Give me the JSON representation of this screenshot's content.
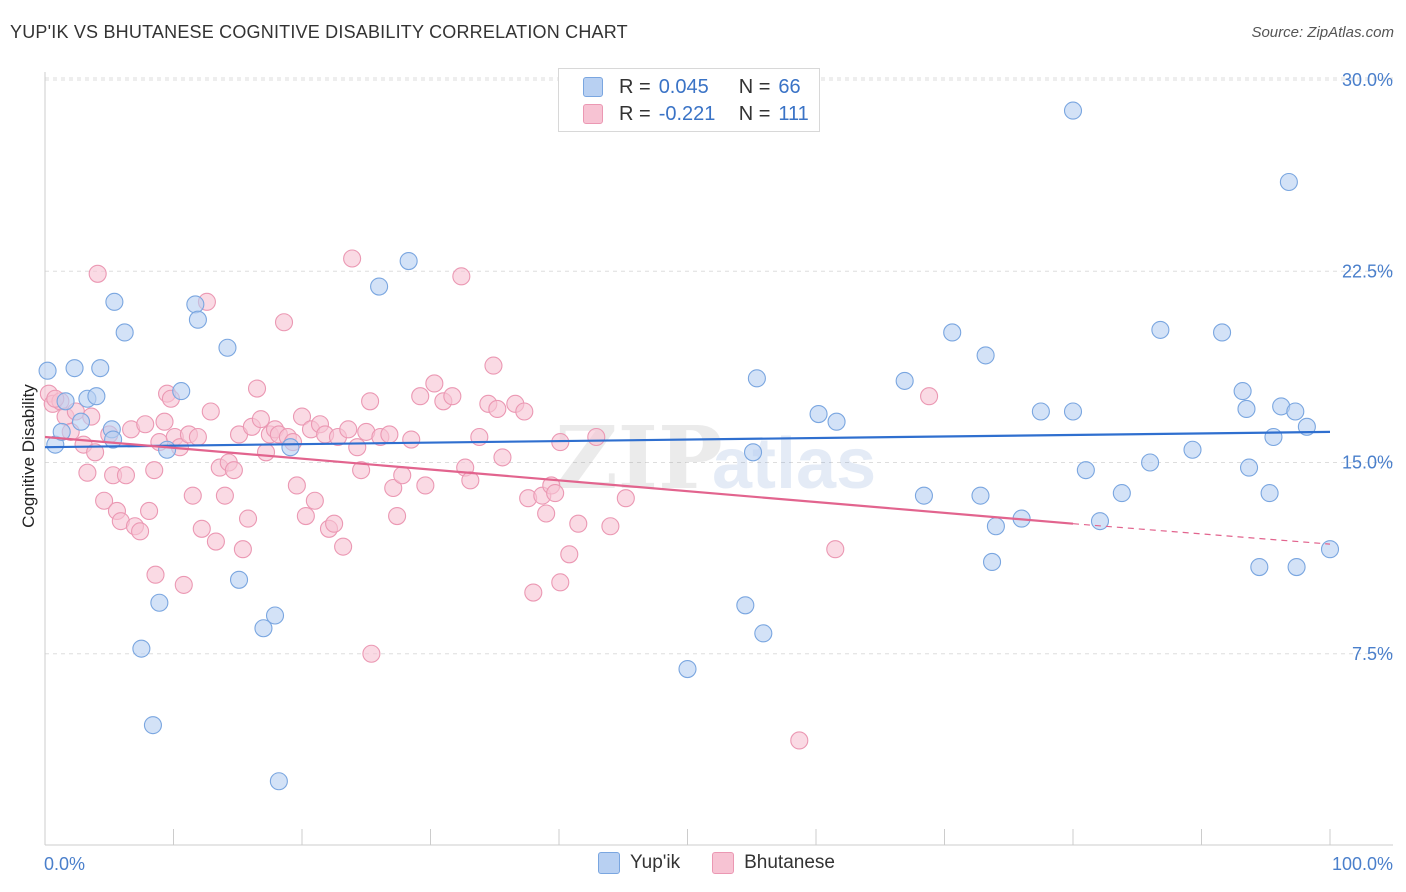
{
  "header": {
    "title": "YUP'IK VS BHUTANESE COGNITIVE DISABILITY CORRELATION CHART",
    "source": "Source: ZipAtlas.com"
  },
  "legend": {
    "r_label": "R =",
    "n_label": "N =",
    "yupik": {
      "r": "0.045",
      "n": "66"
    },
    "bhutanese": {
      "r": "-0.221",
      "n": "111"
    }
  },
  "colors": {
    "blue_fill": "#b8d0f2",
    "blue_stroke": "#7aa6e0",
    "blue_line": "#2f6fcf",
    "pink_fill": "#f7c3d3",
    "pink_stroke": "#eb98b3",
    "pink_line": "#e2648e",
    "tick_text": "#4a7fcb"
  },
  "chart_data": {
    "type": "scatter",
    "title": "YUP'IK VS BHUTANESE COGNITIVE DISABILITY CORRELATION CHART",
    "xlabel": "",
    "ylabel": "Cognitive Disability",
    "xlim": [
      0,
      100
    ],
    "ylim": [
      0,
      31
    ],
    "x_tick_labels": [
      "0.0%",
      "100.0%"
    ],
    "y_ticks": [
      7.5,
      15.0,
      22.5,
      30.0
    ],
    "y_tick_labels": [
      "7.5%",
      "15.0%",
      "22.5%",
      "30.0%"
    ],
    "grid": "horizontal dashed",
    "legend_position": "top-center and bottom",
    "series": [
      {
        "name": "Yup'ik",
        "trend": {
          "x": [
            0,
            100
          ],
          "y": [
            15.6,
            16.2
          ]
        },
        "points": [
          [
            0.2,
            18.6
          ],
          [
            0.8,
            15.7
          ],
          [
            1.3,
            16.2
          ],
          [
            1.6,
            17.4
          ],
          [
            2.3,
            18.7
          ],
          [
            2.8,
            16.6
          ],
          [
            3.3,
            17.5
          ],
          [
            4.0,
            17.6
          ],
          [
            4.3,
            18.7
          ],
          [
            5.2,
            16.3
          ],
          [
            5.3,
            15.9
          ],
          [
            5.4,
            21.3
          ],
          [
            6.2,
            20.1
          ],
          [
            7.5,
            7.7
          ],
          [
            8.4,
            4.7
          ],
          [
            8.9,
            9.5
          ],
          [
            9.5,
            15.5
          ],
          [
            10.6,
            17.8
          ],
          [
            11.7,
            21.2
          ],
          [
            11.9,
            20.6
          ],
          [
            14.2,
            19.5
          ],
          [
            15.1,
            10.4
          ],
          [
            17.0,
            8.5
          ],
          [
            17.9,
            9.0
          ],
          [
            18.2,
            2.5
          ],
          [
            19.1,
            15.6
          ],
          [
            26.0,
            21.9
          ],
          [
            28.3,
            22.9
          ],
          [
            54.9,
            29.2
          ],
          [
            80.0,
            28.8
          ],
          [
            50.0,
            6.9
          ],
          [
            54.5,
            9.4
          ],
          [
            55.9,
            8.3
          ],
          [
            55.1,
            15.4
          ],
          [
            55.4,
            18.3
          ],
          [
            60.2,
            16.9
          ],
          [
            61.6,
            16.6
          ],
          [
            66.9,
            18.2
          ],
          [
            68.4,
            13.7
          ],
          [
            70.6,
            20.1
          ],
          [
            72.8,
            13.7
          ],
          [
            73.7,
            11.1
          ],
          [
            73.2,
            19.2
          ],
          [
            74.0,
            12.5
          ],
          [
            76.0,
            12.8
          ],
          [
            77.5,
            17.0
          ],
          [
            80.0,
            17.0
          ],
          [
            81.0,
            14.7
          ],
          [
            82.1,
            12.7
          ],
          [
            83.8,
            13.8
          ],
          [
            86.0,
            15.0
          ],
          [
            86.8,
            20.2
          ],
          [
            89.3,
            15.5
          ],
          [
            91.6,
            20.1
          ],
          [
            93.2,
            17.8
          ],
          [
            93.5,
            17.1
          ],
          [
            93.7,
            14.8
          ],
          [
            94.5,
            10.9
          ],
          [
            95.6,
            16.0
          ],
          [
            95.3,
            13.8
          ],
          [
            96.2,
            17.2
          ],
          [
            96.8,
            26.0
          ],
          [
            97.3,
            17.0
          ],
          [
            97.4,
            10.9
          ],
          [
            98.2,
            16.4
          ],
          [
            100.0,
            11.6
          ]
        ]
      },
      {
        "name": "Bhutanese",
        "trend": {
          "x": [
            0,
            80
          ],
          "y": [
            16.0,
            12.6
          ]
        },
        "trend_dashed": {
          "x": [
            80,
            100
          ],
          "y": [
            12.6,
            11.8
          ]
        },
        "points": [
          [
            0.3,
            17.7
          ],
          [
            0.6,
            17.3
          ],
          [
            1.2,
            17.4
          ],
          [
            1.6,
            16.8
          ],
          [
            2.0,
            16.2
          ],
          [
            2.4,
            17.0
          ],
          [
            3.0,
            15.7
          ],
          [
            3.3,
            14.6
          ],
          [
            3.6,
            16.8
          ],
          [
            3.9,
            15.4
          ],
          [
            4.1,
            22.4
          ],
          [
            4.6,
            13.5
          ],
          [
            5.0,
            16.1
          ],
          [
            5.3,
            14.5
          ],
          [
            5.6,
            13.1
          ],
          [
            5.9,
            12.7
          ],
          [
            6.3,
            14.5
          ],
          [
            6.7,
            16.3
          ],
          [
            7.0,
            12.5
          ],
          [
            7.4,
            12.3
          ],
          [
            7.8,
            16.5
          ],
          [
            8.1,
            13.1
          ],
          [
            8.5,
            14.7
          ],
          [
            8.6,
            10.6
          ],
          [
            8.9,
            15.8
          ],
          [
            9.3,
            16.6
          ],
          [
            9.5,
            17.7
          ],
          [
            9.8,
            17.5
          ],
          [
            10.1,
            16.0
          ],
          [
            10.5,
            15.6
          ],
          [
            10.8,
            10.2
          ],
          [
            11.2,
            16.1
          ],
          [
            11.5,
            13.7
          ],
          [
            11.9,
            16.0
          ],
          [
            12.2,
            12.4
          ],
          [
            12.6,
            21.3
          ],
          [
            12.9,
            17.0
          ],
          [
            13.3,
            11.9
          ],
          [
            13.6,
            14.8
          ],
          [
            14.0,
            13.7
          ],
          [
            14.3,
            15.0
          ],
          [
            14.7,
            14.7
          ],
          [
            15.1,
            16.1
          ],
          [
            15.4,
            11.6
          ],
          [
            15.8,
            12.8
          ],
          [
            16.1,
            16.4
          ],
          [
            16.5,
            17.9
          ],
          [
            16.8,
            16.7
          ],
          [
            17.2,
            15.4
          ],
          [
            17.5,
            16.1
          ],
          [
            17.9,
            16.3
          ],
          [
            18.2,
            16.1
          ],
          [
            18.6,
            20.5
          ],
          [
            18.9,
            16.0
          ],
          [
            19.3,
            15.8
          ],
          [
            19.6,
            14.1
          ],
          [
            20.0,
            16.8
          ],
          [
            20.3,
            12.9
          ],
          [
            20.7,
            16.3
          ],
          [
            21.0,
            13.5
          ],
          [
            21.4,
            16.5
          ],
          [
            21.8,
            16.1
          ],
          [
            22.1,
            12.4
          ],
          [
            22.5,
            12.6
          ],
          [
            22.8,
            16.0
          ],
          [
            23.2,
            11.7
          ],
          [
            23.6,
            16.3
          ],
          [
            23.9,
            23.0
          ],
          [
            24.3,
            15.6
          ],
          [
            24.6,
            14.7
          ],
          [
            25.0,
            16.2
          ],
          [
            25.3,
            17.4
          ],
          [
            25.4,
            7.5
          ],
          [
            26.1,
            16.0
          ],
          [
            26.8,
            16.1
          ],
          [
            27.1,
            14.0
          ],
          [
            27.4,
            12.9
          ],
          [
            27.8,
            14.5
          ],
          [
            28.5,
            15.9
          ],
          [
            29.2,
            17.6
          ],
          [
            29.6,
            14.1
          ],
          [
            30.3,
            18.1
          ],
          [
            31.0,
            17.4
          ],
          [
            31.7,
            17.6
          ],
          [
            32.4,
            22.3
          ],
          [
            32.7,
            14.8
          ],
          [
            33.1,
            14.3
          ],
          [
            33.8,
            16.0
          ],
          [
            34.5,
            17.3
          ],
          [
            34.9,
            18.8
          ],
          [
            35.2,
            17.1
          ],
          [
            35.6,
            15.2
          ],
          [
            36.6,
            17.3
          ],
          [
            37.3,
            17.0
          ],
          [
            37.6,
            13.6
          ],
          [
            38.0,
            9.9
          ],
          [
            38.7,
            13.7
          ],
          [
            39.0,
            13.0
          ],
          [
            39.4,
            14.1
          ],
          [
            39.7,
            13.8
          ],
          [
            40.1,
            10.3
          ],
          [
            40.1,
            15.8
          ],
          [
            40.8,
            11.4
          ],
          [
            41.5,
            12.6
          ],
          [
            42.9,
            16.0
          ],
          [
            44.0,
            12.5
          ],
          [
            45.2,
            13.6
          ],
          [
            58.7,
            4.1
          ],
          [
            61.5,
            11.6
          ],
          [
            68.8,
            17.6
          ],
          [
            0.8,
            17.5
          ]
        ]
      }
    ]
  }
}
